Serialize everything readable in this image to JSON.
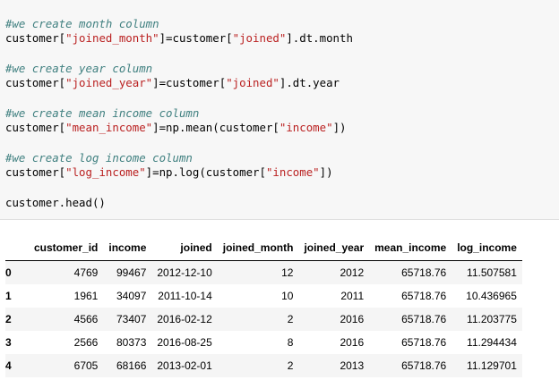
{
  "code_cell": {
    "lines": [
      {
        "comment": "#we create month column"
      },
      {
        "pre": "customer[",
        "s1": "\"joined_month\"",
        "mid": "]=customer[",
        "s2": "\"joined\"",
        "post": "].dt.month"
      },
      {
        "comment": "#we create year column"
      },
      {
        "pre": "customer[",
        "s1": "\"joined_year\"",
        "mid": "]=customer[",
        "s2": "\"joined\"",
        "post": "].dt.year"
      },
      {
        "comment": "#we create mean income column"
      },
      {
        "pre": "customer[",
        "s1": "\"mean_income\"",
        "mid": "]=np.mean(customer[",
        "s2": "\"income\"",
        "post": "])"
      },
      {
        "comment": "#we create log income column"
      },
      {
        "pre": "customer[",
        "s1": "\"log_income\"",
        "mid": "]=np.log(customer[",
        "s2": "\"income\"",
        "post": "])"
      },
      {
        "plain": "customer.head()"
      }
    ]
  },
  "colors": {
    "comment": "#408080",
    "string": "#ba2121",
    "cell_background": "#f7f7f7",
    "row_stripe": "#f5f5f5"
  },
  "dataframe": {
    "index_header": "",
    "columns": [
      "customer_id",
      "income",
      "joined",
      "joined_month",
      "joined_year",
      "mean_income",
      "log_income"
    ],
    "rows": [
      {
        "index": "0",
        "cells": [
          "4769",
          "99467",
          "2012-12-10",
          "12",
          "2012",
          "65718.76",
          "11.507581"
        ]
      },
      {
        "index": "1",
        "cells": [
          "1961",
          "34097",
          "2011-10-14",
          "10",
          "2011",
          "65718.76",
          "10.436965"
        ]
      },
      {
        "index": "2",
        "cells": [
          "4566",
          "73407",
          "2016-02-12",
          "2",
          "2016",
          "65718.76",
          "11.203775"
        ]
      },
      {
        "index": "3",
        "cells": [
          "2566",
          "80373",
          "2016-08-25",
          "8",
          "2016",
          "65718.76",
          "11.294434"
        ]
      },
      {
        "index": "4",
        "cells": [
          "6705",
          "68166",
          "2013-02-01",
          "2",
          "2013",
          "65718.76",
          "11.129701"
        ]
      }
    ]
  }
}
